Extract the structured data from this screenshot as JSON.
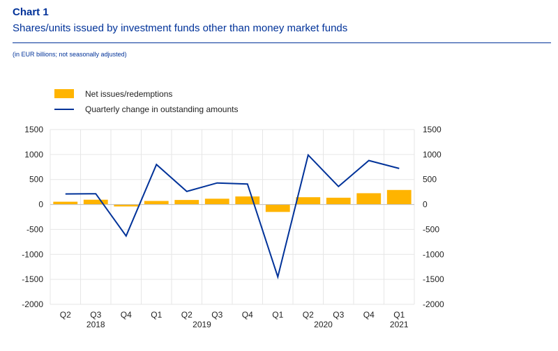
{
  "header": {
    "number": "Chart 1",
    "title": "Shares/units issued by investment funds other than money market funds",
    "subtitle": "(in EUR billions; not seasonally adjusted)"
  },
  "colors": {
    "bar": "#FFB400",
    "line": "#003299",
    "title": "#003299",
    "grid": "#e6e6e6"
  },
  "chart_data": {
    "type": "bar",
    "categories": [
      "Q2",
      "Q3",
      "Q4",
      "Q1",
      "Q2",
      "Q3",
      "Q4",
      "Q1",
      "Q2",
      "Q3",
      "Q4",
      "Q1"
    ],
    "year_labels": [
      {
        "label": "2018",
        "start": 0,
        "end": 2
      },
      {
        "label": "2019",
        "start": 3,
        "end": 6
      },
      {
        "label": "2020",
        "start": 7,
        "end": 10
      },
      {
        "label": "2021",
        "start": 11,
        "end": 11
      }
    ],
    "series": [
      {
        "name": "Net issues/redemptions",
        "type": "bar",
        "values": [
          55,
          95,
          -40,
          70,
          90,
          115,
          160,
          -150,
          145,
          135,
          225,
          290
        ]
      },
      {
        "name": "Quarterly change in outstanding amounts",
        "type": "line",
        "values": [
          210,
          215,
          -630,
          800,
          260,
          430,
          410,
          -1450,
          990,
          360,
          880,
          720
        ]
      }
    ],
    "ylim": [
      -2000,
      1500
    ],
    "yticks": [
      1500,
      1000,
      500,
      0,
      -500,
      -1000,
      -1500,
      -2000
    ],
    "grid": true,
    "legend_position": "top-left",
    "xlabel": "",
    "ylabel": ""
  }
}
